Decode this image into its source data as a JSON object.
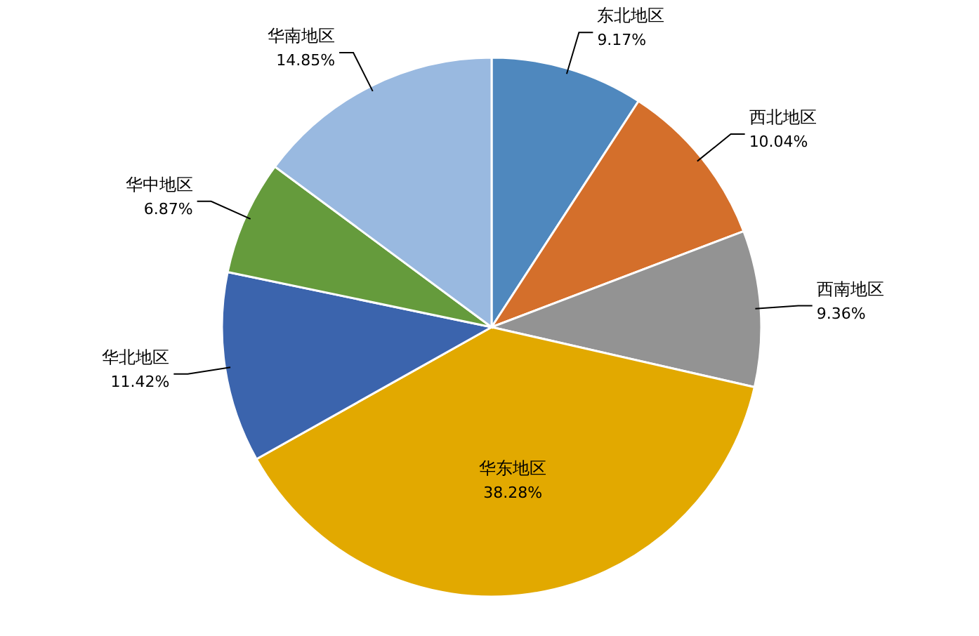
{
  "chart_data": {
    "type": "pie",
    "categories": [
      "东北地区",
      "西北地区",
      "西南地区",
      "华东地区",
      "华北地区",
      "华中地区",
      "华南地区"
    ],
    "values": [
      9.17,
      10.04,
      9.36,
      38.28,
      11.42,
      6.87,
      14.85
    ],
    "value_labels": [
      "9.17%",
      "10.04%",
      "9.36%",
      "38.28%",
      "11.42%",
      "6.87%",
      "14.85%"
    ],
    "colors": [
      "#4f88be",
      "#d46f2b",
      "#939393",
      "#e2a900",
      "#3b64ad",
      "#659b3c",
      "#99b9e0"
    ]
  }
}
